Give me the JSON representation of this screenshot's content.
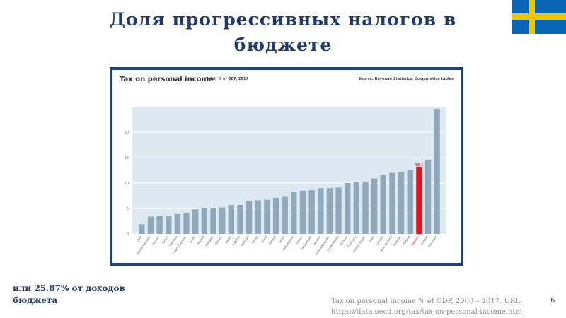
{
  "slide": {
    "title": "Доля прогрессивных налогов в бюджете",
    "note": "или 25.87% от доходов бюджета",
    "source": "Tax on personal income % of GDP, 2000 – 2017. URL: https://data.oecd.org/tax/tax-on-personal-income.htm",
    "page_number": "6"
  },
  "colors": {
    "title": "#1f3a6e",
    "frame": "#1e4471",
    "plot_bg": "#dde9f1",
    "bar": "#8fa8bb",
    "highlight": "#e8141b",
    "flag_blue": "#0a66b4",
    "flag_yellow": "#f3c400"
  },
  "chart_data": {
    "type": "bar",
    "title": "Tax on personal income",
    "subtitle": "Total, % of GDP, 2017",
    "source": "Source: Revenue Statistics: Comparative tables",
    "ylim": [
      0,
      25
    ],
    "yticks": [
      0,
      5,
      10,
      15,
      20
    ],
    "grid": true,
    "highlight_category": "Sweden",
    "highlight_label": "13.1",
    "categories": [
      "Chile",
      "Slovak Republic",
      "Mexico",
      "Turkey",
      "Slovenia",
      "Czech Republic",
      "Korea",
      "Poland",
      "Hungary",
      "Greece",
      "Japan",
      "Estonia",
      "Portugal",
      "Latvia",
      "Israel",
      "Ireland",
      "Spain",
      "Netherlands",
      "France",
      "Switzerland",
      "Austria",
      "United Kingdom",
      "Luxembourg",
      "Norway",
      "Germany",
      "United States",
      "Italy",
      "Canada",
      "New Zealand",
      "Belgium",
      "Finland",
      "Sweden",
      "Iceland",
      "Denmark"
    ],
    "values": [
      1.9,
      3.4,
      3.5,
      3.6,
      3.9,
      4.1,
      4.8,
      5.0,
      5.0,
      5.2,
      5.7,
      5.7,
      6.5,
      6.6,
      6.7,
      7.1,
      7.3,
      8.3,
      8.5,
      8.6,
      9.0,
      9.0,
      9.1,
      10.0,
      10.2,
      10.3,
      10.9,
      11.6,
      12.0,
      12.1,
      12.6,
      13.1,
      14.6,
      24.6
    ]
  }
}
